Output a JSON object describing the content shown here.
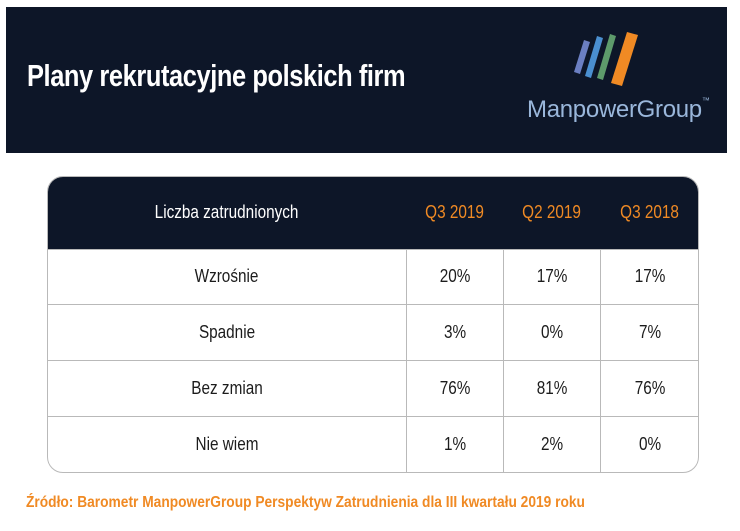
{
  "header": {
    "title": "Plany rekrutacyjne polskich firm",
    "logo_text": "ManpowerGroup",
    "logo_tm": "™",
    "logo_colors": [
      "#6b7fc2",
      "#f08a24",
      "#5d9b6b",
      "#4a8fd0"
    ]
  },
  "table": {
    "row_header": "Liczba zatrudnionych",
    "columns": [
      "Q3 2019",
      "Q2 2019",
      "Q3 2018"
    ],
    "rows": [
      {
        "label": "Wzrośnie",
        "values": [
          "20%",
          "17%",
          "17%"
        ]
      },
      {
        "label": "Spadnie",
        "values": [
          "3%",
          "0%",
          "7%"
        ]
      },
      {
        "label": "Bez zmian",
        "values": [
          "76%",
          "81%",
          "76%"
        ]
      },
      {
        "label": "Nie wiem",
        "values": [
          "1%",
          "2%",
          "0%"
        ]
      }
    ]
  },
  "footer": {
    "source": "Źródło: Barometr ManpowerGroup Perspektyw Zatrudnienia dla III kwartału 2019 roku"
  },
  "colors": {
    "navy": "#0d1628",
    "orange": "#f08a24",
    "logo_blue": "#9ab7db"
  }
}
